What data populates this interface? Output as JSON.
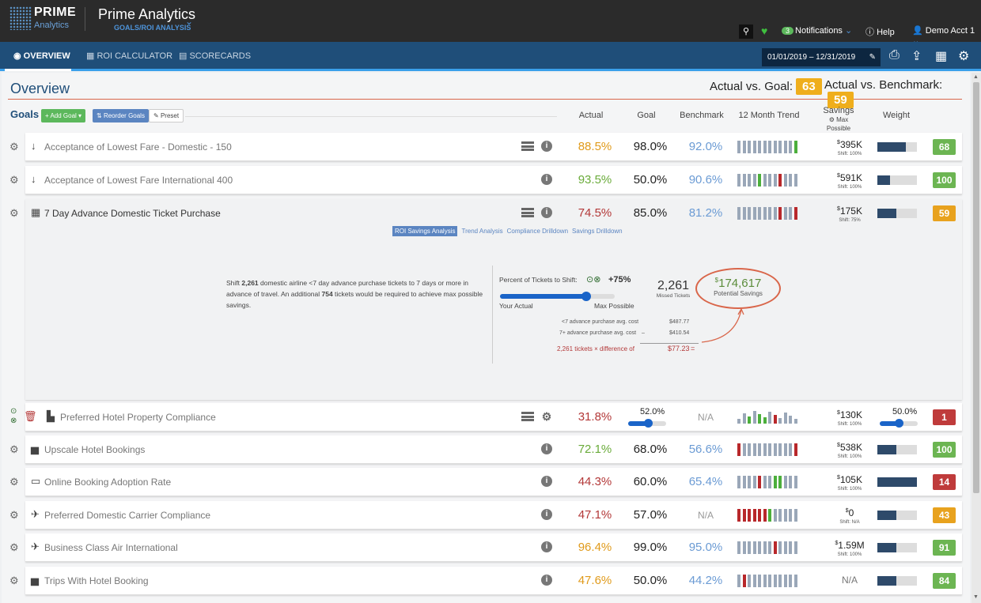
{
  "brand": {
    "prime": "PRIME",
    "analytics": "Analytics"
  },
  "app": {
    "title": "Prime Analytics",
    "subtitle": "GOALS/ROI ANALYSIS"
  },
  "topbar": {
    "notif_count": "3",
    "notifications": "Notifications",
    "help": "Help",
    "account": "Demo Acct 1"
  },
  "nav": {
    "overview": "OVERVIEW",
    "roi": "ROI CALCULATOR",
    "scorecards": "SCORECARDS",
    "daterange": "01/01/2019 – 12/31/2019"
  },
  "overview": {
    "title": "Overview",
    "avg_label": "Actual vs. Goal:",
    "avg_value": "63",
    "avb_label": "Actual vs. Benchmark:",
    "avb_value": "59"
  },
  "goals": {
    "label": "Goals",
    "add": "Add Goal",
    "reorder": "Reorder Goals",
    "preset": "Preset"
  },
  "columns": {
    "actual": "Actual",
    "goal": "Goal",
    "benchmark": "Benchmark",
    "trend": "12 Month Trend",
    "savings": "Savings",
    "savings_sub": "Max Possible",
    "weight": "Weight"
  },
  "rows": [
    {
      "name": "Acceptance of Lowest Fare - Domestic - 150",
      "actual": "88.5%",
      "goal": "98.0%",
      "bench": "92.0%",
      "sav": "395K",
      "shift": "Shift: 100%",
      "weight": 0.72,
      "score": "68",
      "trend": [
        2,
        2,
        2,
        2,
        2,
        2,
        2,
        2,
        2,
        2,
        2,
        1
      ]
    },
    {
      "name": "Acceptance of Lowest Fare International 400",
      "actual": "93.5%",
      "goal": "50.0%",
      "bench": "90.6%",
      "sav": "591K",
      "shift": "Shift: 100%",
      "weight": 0.32,
      "score": "100",
      "trend": [
        2,
        2,
        2,
        2,
        1,
        2,
        2,
        2,
        0,
        2,
        2,
        2
      ]
    },
    {
      "name": "7 Day Advance Domestic Ticket Purchase",
      "actual": "74.5%",
      "goal": "85.0%",
      "bench": "81.2%",
      "sav": "175K",
      "shift": "Shift: 75%",
      "weight": 0.48,
      "score": "59",
      "trend": [
        2,
        2,
        2,
        2,
        2,
        2,
        2,
        2,
        0,
        2,
        2,
        0
      ]
    },
    {
      "name": "Preferred Hotel Property Compliance",
      "actual": "31.8%",
      "goal": "52.0%",
      "bench": "N/A",
      "sav": "130K",
      "shift": "Shift: 100%",
      "weight_pct": "50.0%",
      "goal_pct": 0.52,
      "weight_frac": 0.5,
      "score": "1",
      "trend": [
        2,
        2,
        1,
        2,
        1,
        1,
        2,
        0,
        2,
        2,
        2,
        2
      ]
    },
    {
      "name": "Upscale Hotel Bookings",
      "actual": "72.1%",
      "goal": "68.0%",
      "bench": "56.6%",
      "sav": "538K",
      "shift": "Shift: 100%",
      "weight": 0.48,
      "score": "100",
      "trend": [
        0,
        2,
        2,
        2,
        2,
        2,
        2,
        2,
        2,
        2,
        2,
        0
      ]
    },
    {
      "name": "Online Booking Adoption Rate",
      "actual": "44.3%",
      "goal": "60.0%",
      "bench": "65.4%",
      "sav": "105K",
      "shift": "Shift: 100%",
      "weight": 1.0,
      "score": "14",
      "trend": [
        2,
        2,
        2,
        2,
        0,
        2,
        2,
        1,
        1,
        2,
        2,
        2
      ]
    },
    {
      "name": "Preferred Domestic Carrier Compliance",
      "actual": "47.1%",
      "goal": "57.0%",
      "bench": "N/A",
      "sav": "0",
      "shift": "Shift: N/A",
      "weight": 0.48,
      "score": "43",
      "trend": [
        0,
        0,
        0,
        0,
        0,
        0,
        1,
        2,
        2,
        2,
        2,
        2
      ]
    },
    {
      "name": "Business Class Air International",
      "actual": "96.4%",
      "goal": "99.0%",
      "bench": "95.0%",
      "sav": "1.59M",
      "shift": "Shift: 100%",
      "weight": 0.48,
      "score": "91",
      "trend": [
        2,
        2,
        2,
        2,
        2,
        2,
        2,
        0,
        2,
        2,
        2,
        2
      ]
    },
    {
      "name": "Trips With Hotel Booking",
      "actual": "47.6%",
      "goal": "50.0%",
      "bench": "44.2%",
      "sav": "N/A",
      "shift": "",
      "weight": 0.48,
      "score": "84",
      "trend": [
        2,
        0,
        2,
        2,
        2,
        2,
        2,
        2,
        2,
        2,
        2,
        2
      ]
    }
  ],
  "expanded": {
    "tabs": [
      "ROI Savings Analysis",
      "Trend Analysis",
      "Compliance Drilldown",
      "Savings Drilldown"
    ],
    "text_a": "Shift ",
    "text_n1": "2,261",
    "text_b": " domestic airline <7 day advance purchase tickets to 7 days or more in advance of travel. An additional ",
    "text_n2": "754",
    "text_c": " tickets would be required to achieve max possible savings.",
    "pct_label": "Percent of Tickets to Shift:",
    "pct_value": "+75%",
    "pct_frac": 0.75,
    "your_actual": "Your Actual",
    "max_possible": "Max Possible",
    "missed": "2,261",
    "missed_lbl": "Missed Tickets",
    "potential": "174,617",
    "potential_lbl": "Potential Savings",
    "c1_lbl": "<7 advance purchase avg. cost",
    "c1_val": "$487.77",
    "c2_lbl": "7+ advance purchase avg. cost",
    "c2_val": "$410.54",
    "c3_lbl": "2,261 tickets × difference of",
    "c3_val": "$77.23"
  }
}
